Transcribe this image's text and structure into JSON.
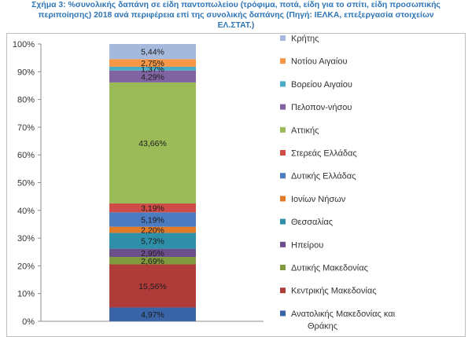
{
  "chart_data": {
    "type": "bar",
    "stacked": true,
    "percent_stacked": true,
    "title_lines": [
      "Σχήμα 3: %συνολικής δαπάνη σε είδη παντοπωλείου (τρόφιμα, ποτά, είδη για το σπίτι, είδη προσωπικής",
      "περιποίησης) 2018 ανά περιφέρεια επί της συνολικής δαπάνης (Πηγή: ΙΕΛΚΑ, επεξεργασία στοιχείων",
      "ΕΛ.ΣΤΑΤ.)"
    ],
    "categories": [
      ""
    ],
    "ylim": [
      0,
      100
    ],
    "y_ticks": [
      "0%",
      "10%",
      "20%",
      "30%",
      "40%",
      "50%",
      "60%",
      "70%",
      "80%",
      "90%",
      "100%"
    ],
    "legend_position": "right",
    "series": [
      {
        "name": "Ανατολικής Μακεδονίας και Θράκης",
        "value": 4.97,
        "label": "4,97%",
        "color": "#3a64a8"
      },
      {
        "name": "Κεντρικής Μακεδονίας",
        "value": 15.56,
        "label": "15,56%",
        "color": "#b03c3a"
      },
      {
        "name": "Δυτικής Μακεδονίας",
        "value": 2.69,
        "label": "2,69%",
        "color": "#7f9a3f"
      },
      {
        "name": "Ηπείρου",
        "value": 2.95,
        "label": "2,95%",
        "color": "#6b4f8a"
      },
      {
        "name": "Θεσσαλίας",
        "value": 5.73,
        "label": "5,73%",
        "color": "#2f8fa8"
      },
      {
        "name": "Ιονίων Νήσων",
        "value": 2.2,
        "label": "2,20%",
        "color": "#e07b2a"
      },
      {
        "name": "Δυτικής Ελλάδας",
        "value": 5.19,
        "label": "5,19%",
        "color": "#4b7cc2"
      },
      {
        "name": "Στερεάς Ελλάδας",
        "value": 3.19,
        "label": "3,19%",
        "color": "#cf4b47"
      },
      {
        "name": "Αττικής",
        "value": 43.66,
        "label": "43,66%",
        "color": "#9bbb59"
      },
      {
        "name": "Πελοπον-νήσου",
        "value": 4.29,
        "label": "4,29%",
        "color": "#8064a2"
      },
      {
        "name": "Βορείου Αιγαίου",
        "value": 1.37,
        "label": "1,37%",
        "color": "#4bacc6"
      },
      {
        "name": "Νοτίου Αιγαίου",
        "value": 2.75,
        "label": "2,75%",
        "color": "#f79646"
      },
      {
        "name": "Κρήτης",
        "value": 5.44,
        "label": "5,44%",
        "color": "#a5b9dc"
      }
    ]
  }
}
